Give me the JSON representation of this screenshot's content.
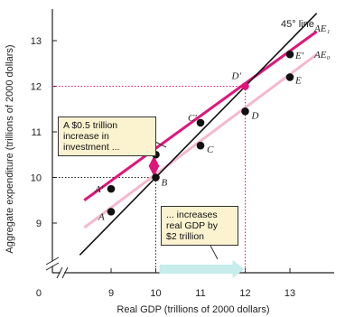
{
  "chart_data": {
    "type": "line",
    "xlabel": "Real GDP (trillions of 2000 dollars)",
    "ylabel": "Aggregate expenditure (trillions of 2000 dollars)",
    "origin_label": "0",
    "xlim": [
      8.3,
      13.7
    ],
    "ylim": [
      8.3,
      13.7
    ],
    "x_ticks": [
      9,
      10,
      11,
      12,
      13
    ],
    "y_ticks": [
      9,
      10,
      11,
      12,
      13
    ],
    "x_tick_labels": [
      "9",
      "10",
      "11",
      "12",
      "13"
    ],
    "y_tick_labels": [
      "9",
      "10",
      "11",
      "12",
      "13"
    ],
    "series": [
      {
        "name": "45° line",
        "color": "#111111",
        "x": [
          8.3,
          13.6
        ],
        "y": [
          8.3,
          13.6
        ]
      },
      {
        "name": "AE₁",
        "color": "#e0157a",
        "x": [
          8.4,
          13.6
        ],
        "y": [
          9.5,
          13.2
        ]
      },
      {
        "name": "AE₀",
        "color": "#f5b8cc",
        "x": [
          8.4,
          13.6
        ],
        "y": [
          8.9,
          12.7
        ]
      }
    ],
    "points": [
      {
        "label": "A",
        "x": 9,
        "y": 9.25
      },
      {
        "label": "B",
        "x": 10,
        "y": 10
      },
      {
        "label": "C",
        "x": 11,
        "y": 10.7
      },
      {
        "label": "D",
        "x": 12,
        "y": 11.45
      },
      {
        "label": "E",
        "x": 13,
        "y": 12.2
      },
      {
        "label": "A'",
        "x": 9,
        "y": 9.75
      },
      {
        "label": "B'",
        "x": 10,
        "y": 10.5
      },
      {
        "label": "C'",
        "x": 11,
        "y": 11.2
      },
      {
        "label": "D'",
        "x": 12,
        "y": 12
      },
      {
        "label": "E'",
        "x": 13,
        "y": 12.7
      }
    ],
    "annotations": [
      {
        "id": "investment",
        "lines": [
          "A $0.5 trillion",
          "increase in",
          "investment ..."
        ]
      },
      {
        "id": "gdp",
        "lines": [
          "... increases",
          "real GDP by",
          "$2 trillion"
        ]
      }
    ],
    "colors": {
      "ae1": "#e0157a",
      "ae0": "#f5b8cc",
      "line45": "#111111",
      "highlight": "#e0157a",
      "arrow": "#c6ecec",
      "note_bg": "#fbf2cf"
    }
  }
}
